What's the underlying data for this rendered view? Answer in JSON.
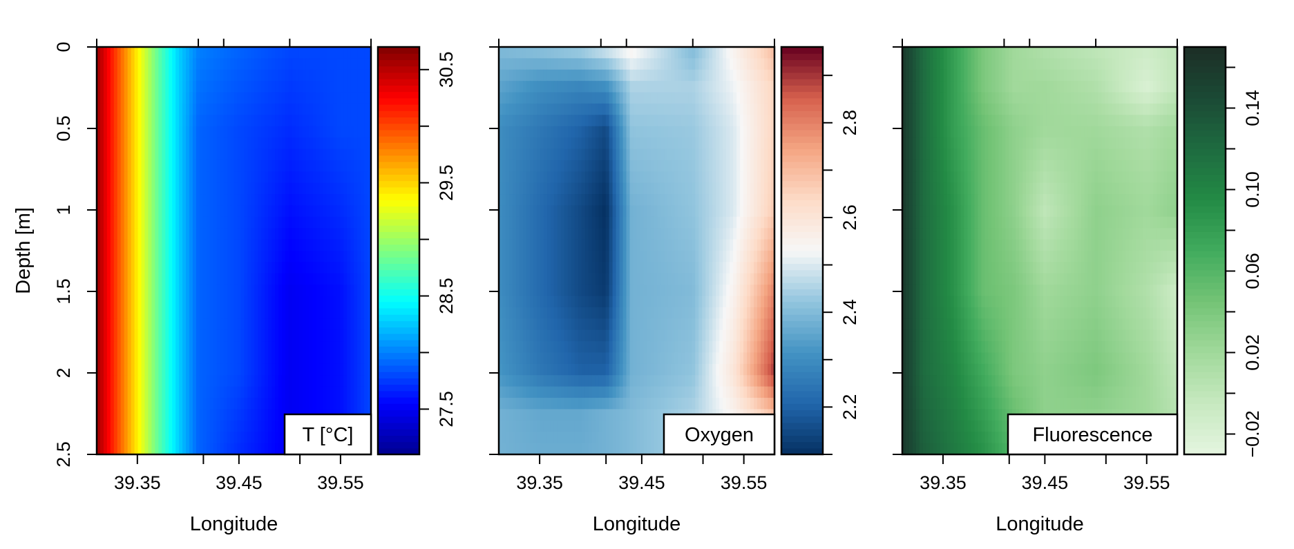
{
  "chart_data": [
    {
      "type": "heatmap",
      "title": "",
      "xlabel": "Longitude",
      "ylabel": "Depth [m]",
      "xlim": [
        39.31,
        39.58
      ],
      "ylim": [
        2.5,
        0
      ],
      "x_ticks": [
        39.35,
        39.45,
        39.55
      ],
      "x_tick_labels": [
        "39.35",
        "39.45",
        "39.55"
      ],
      "y_ticks": [
        0,
        0.5,
        1,
        1.5,
        2,
        2.5
      ],
      "y_tick_labels": [
        "0",
        "0.5",
        "1",
        "1.5",
        "2",
        "2.5"
      ],
      "legend_label": "T [°C]",
      "colorbar_range": [
        27.1,
        30.7
      ],
      "colorbar_ticks": [
        27.5,
        28.5,
        29.5,
        30.5
      ],
      "colorbar_tick_labels": [
        "27.5",
        "28.5",
        "29.5",
        "30.5"
      ],
      "colormap": [
        "#00008f",
        "#0000ff",
        "#0080ff",
        "#00ffff",
        "#80ff80",
        "#ffff00",
        "#ff8000",
        "#ff0000",
        "#800000"
      ],
      "x": [
        39.31,
        39.33,
        39.35,
        39.37,
        39.39,
        39.41,
        39.45,
        39.5,
        39.55,
        39.58
      ],
      "y": [
        0,
        0.5,
        1.0,
        1.5,
        2.0,
        2.5
      ],
      "z": [
        [
          30.6,
          30.0,
          29.4,
          28.8,
          28.3,
          28.0,
          27.9,
          27.8,
          27.8,
          27.8
        ],
        [
          30.6,
          30.0,
          29.4,
          28.8,
          28.3,
          27.9,
          27.8,
          27.7,
          27.8,
          27.8
        ],
        [
          30.6,
          30.0,
          29.4,
          28.8,
          28.3,
          27.9,
          27.8,
          27.6,
          27.7,
          27.8
        ],
        [
          30.6,
          30.0,
          29.4,
          28.8,
          28.3,
          27.9,
          27.8,
          27.5,
          27.6,
          27.8
        ],
        [
          30.6,
          30.0,
          29.4,
          28.8,
          28.3,
          27.9,
          27.8,
          27.5,
          27.6,
          27.8
        ],
        [
          30.6,
          30.0,
          29.4,
          28.8,
          28.3,
          27.9,
          27.7,
          27.5,
          27.6,
          27.8
        ]
      ]
    },
    {
      "type": "heatmap",
      "title": "",
      "xlabel": "Longitude",
      "ylabel": "",
      "xlim": [
        39.31,
        39.58
      ],
      "ylim": [
        2.5,
        0
      ],
      "x_ticks": [
        39.35,
        39.45,
        39.55
      ],
      "x_tick_labels": [
        "39.35",
        "39.45",
        "39.55"
      ],
      "y_ticks": [
        0,
        0.5,
        1,
        1.5,
        2,
        2.5
      ],
      "y_tick_labels": [],
      "legend_label": "Oxygen",
      "colorbar_range": [
        2.1,
        2.96
      ],
      "colorbar_ticks": [
        2.2,
        2.4,
        2.6,
        2.8
      ],
      "colorbar_tick_labels": [
        "2.2",
        "2.4",
        "2.6",
        "2.8"
      ],
      "colormap": [
        "#053061",
        "#2166ac",
        "#4393c3",
        "#92c5de",
        "#f7f7f7",
        "#fddbc7",
        "#f4a582",
        "#d6604d",
        "#67001f"
      ],
      "x": [
        39.31,
        39.35,
        39.39,
        39.415,
        39.44,
        39.5,
        39.54,
        39.58
      ],
      "y": [
        0,
        0.25,
        0.5,
        1.0,
        1.5,
        2.0,
        2.25,
        2.5
      ],
      "z": [
        [
          2.4,
          2.42,
          2.45,
          2.5,
          2.55,
          2.4,
          2.55,
          2.7
        ],
        [
          2.35,
          2.3,
          2.28,
          2.3,
          2.45,
          2.45,
          2.52,
          2.65
        ],
        [
          2.3,
          2.25,
          2.2,
          2.15,
          2.42,
          2.43,
          2.5,
          2.65
        ],
        [
          2.3,
          2.22,
          2.15,
          2.1,
          2.38,
          2.42,
          2.5,
          2.67
        ],
        [
          2.3,
          2.22,
          2.15,
          2.12,
          2.38,
          2.4,
          2.55,
          2.8
        ],
        [
          2.32,
          2.25,
          2.2,
          2.2,
          2.38,
          2.42,
          2.6,
          2.9
        ],
        [
          2.38,
          2.36,
          2.36,
          2.38,
          2.4,
          2.45,
          2.55,
          2.7
        ],
        [
          2.38,
          2.37,
          2.37,
          2.38,
          2.4,
          2.45,
          2.5,
          2.58
        ]
      ]
    },
    {
      "type": "heatmap",
      "title": "",
      "xlabel": "Longitude",
      "ylabel": "",
      "xlim": [
        39.31,
        39.58
      ],
      "ylim": [
        2.5,
        0
      ],
      "x_ticks": [
        39.35,
        39.45,
        39.55
      ],
      "x_tick_labels": [
        "39.35",
        "39.45",
        "39.55"
      ],
      "y_ticks": [
        0,
        0.5,
        1,
        1.5,
        2,
        2.5
      ],
      "y_tick_labels": [],
      "legend_label": "Fluorescence",
      "colorbar_range": [
        -0.03,
        0.17
      ],
      "colorbar_ticks": [
        -0.02,
        0.02,
        0.06,
        0.1,
        0.14
      ],
      "colorbar_tick_labels": [
        "−0.02",
        "0.02",
        "0.06",
        "0.10",
        "0.14"
      ],
      "colormap": [
        "#e5f5e0",
        "#c7e9c0",
        "#a1d99b",
        "#74c476",
        "#41ab5d",
        "#238b45",
        "#1e6b40",
        "#1b4a35",
        "#1c2e26"
      ],
      "x": [
        39.31,
        39.33,
        39.36,
        39.39,
        39.42,
        39.45,
        39.5,
        39.55,
        39.58
      ],
      "y": [
        0,
        0.25,
        0.5,
        1.0,
        1.5,
        2.0,
        2.5
      ],
      "z": [
        [
          0.16,
          0.12,
          0.08,
          0.04,
          0.02,
          0.01,
          0.0,
          -0.01,
          0.0
        ],
        [
          0.16,
          0.12,
          0.08,
          0.04,
          0.02,
          0.02,
          0.01,
          -0.02,
          0.0
        ],
        [
          0.16,
          0.12,
          0.08,
          0.05,
          0.03,
          0.02,
          0.02,
          0.01,
          0.02
        ],
        [
          0.16,
          0.12,
          0.09,
          0.05,
          0.03,
          0.0,
          0.03,
          0.02,
          0.03
        ],
        [
          0.16,
          0.12,
          0.09,
          0.05,
          0.04,
          0.02,
          0.03,
          0.01,
          -0.01
        ],
        [
          0.16,
          0.12,
          0.1,
          0.07,
          0.04,
          0.03,
          0.04,
          0.02,
          0.0
        ],
        [
          0.16,
          0.13,
          0.11,
          0.09,
          0.06,
          0.03,
          0.02,
          0.02,
          0.01
        ]
      ]
    }
  ]
}
